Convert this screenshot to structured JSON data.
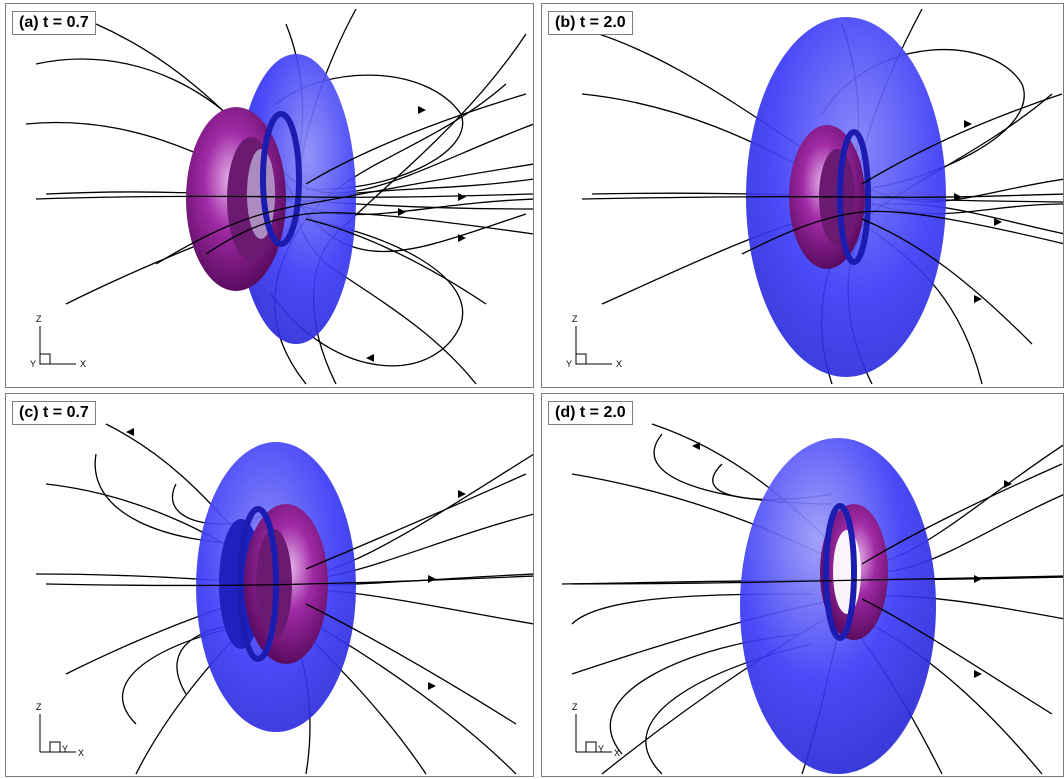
{
  "figure": {
    "panels": [
      {
        "id": "a",
        "label": "(a) t = 0.7",
        "torus_color": "#8e1a93",
        "sheet_color": "#3b3bf7",
        "axis_x": "X",
        "axis_y": "Y",
        "axis_z": "Z"
      },
      {
        "id": "b",
        "label": "(b) t = 2.0",
        "torus_color": "#8e1a93",
        "sheet_color": "#3b3bf7",
        "axis_x": "X",
        "axis_y": "Y",
        "axis_z": "Z"
      },
      {
        "id": "c",
        "label": "(c) t = 0.7",
        "torus_color": "#8e1a93",
        "sheet_color": "#3b3bf7",
        "axis_x": "X",
        "axis_y": "Y",
        "axis_z": "Z"
      },
      {
        "id": "d",
        "label": "(d) t = 2.0",
        "torus_color": "#8e1a93",
        "sheet_color": "#3b3bf7",
        "axis_x": "X",
        "axis_y": "Y",
        "axis_z": "Z"
      }
    ]
  }
}
